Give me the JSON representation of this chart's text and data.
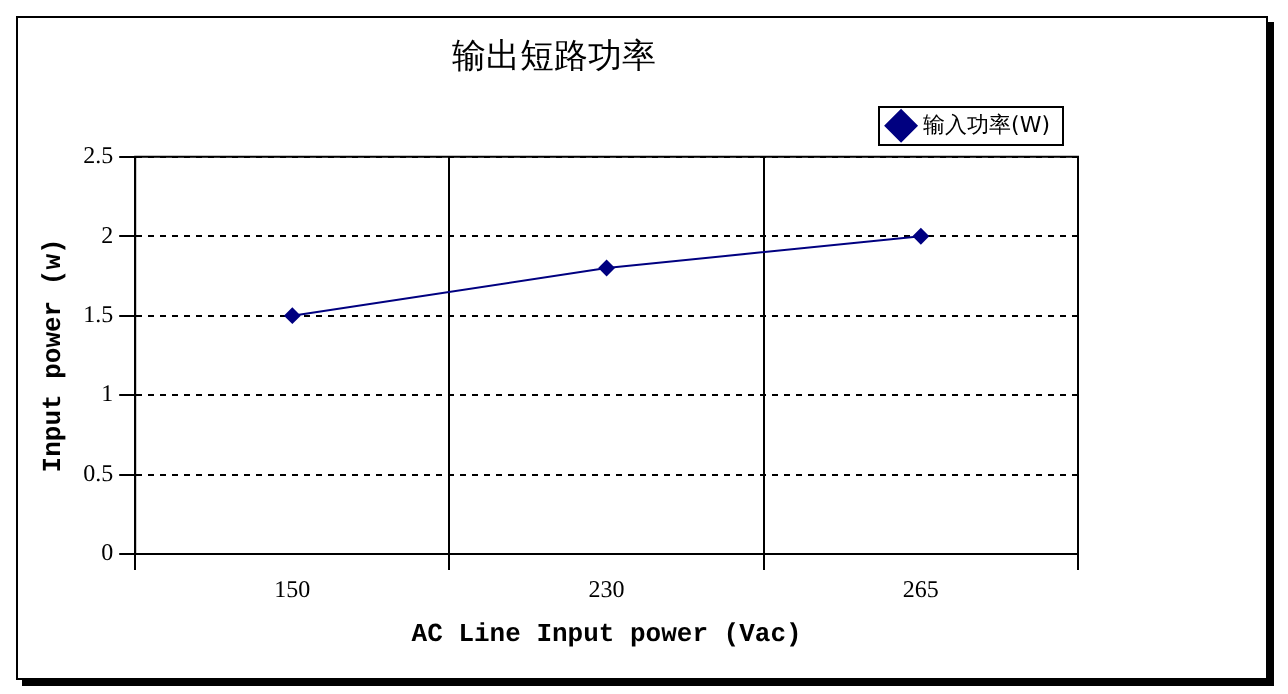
{
  "chart_data": {
    "type": "line",
    "title": "输出短路功率",
    "xlabel": "AC Line Input power (Vac)",
    "ylabel": "Input power (w)",
    "categories": [
      "150",
      "230",
      "265"
    ],
    "series": [
      {
        "name": "输入功率(W)",
        "color": "#000080",
        "values": [
          1.5,
          1.8,
          2.0
        ]
      }
    ],
    "ylim": [
      0,
      2.5
    ],
    "yticks": [
      0,
      0.5,
      1,
      1.5,
      2,
      2.5
    ],
    "grid": true,
    "legend": "top right",
    "marker": "diamond",
    "line_style": "solid"
  }
}
